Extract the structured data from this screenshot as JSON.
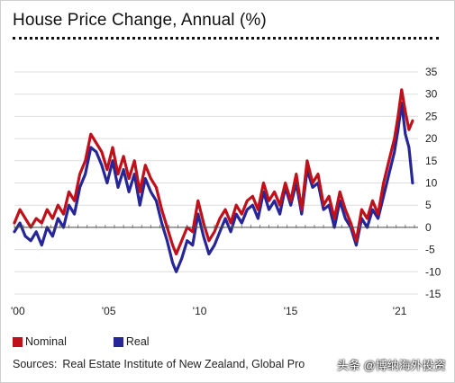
{
  "title": "House Price Change, Annual (%)",
  "legend": {
    "nominal_label": "Nominal",
    "real_label": "Real"
  },
  "source": {
    "label": "Sources:",
    "text": "Real Estate Institute of New Zealand, Global Pro"
  },
  "watermark": "头条 @博纳海外投资",
  "chart_data": {
    "type": "line",
    "title": "House Price Change, Annual (%)",
    "xlabel": "",
    "ylabel": "",
    "xlim": [
      2000,
      2022.2
    ],
    "ylim": [
      -15,
      35
    ],
    "y_axis_side": "right",
    "y_ticks": [
      35,
      30,
      25,
      20,
      15,
      10,
      5,
      0,
      -5,
      -10,
      -15
    ],
    "x_ticks": [
      {
        "value": 2000,
        "label": "'00"
      },
      {
        "value": 2005,
        "label": "'05"
      },
      {
        "value": 2010,
        "label": "'10"
      },
      {
        "value": 2015,
        "label": "'15"
      },
      {
        "value": 2021,
        "label": "'21"
      }
    ],
    "grid": "horizontal",
    "legend_position": "bottom-left",
    "colors": {
      "nominal": "#c0101a",
      "real": "#262699"
    },
    "series": [
      {
        "name": "Nominal",
        "color": "#c0101a",
        "x": [
          2000,
          2000.3,
          2000.6,
          2000.9,
          2001.2,
          2001.5,
          2001.8,
          2002.1,
          2002.4,
          2002.7,
          2003,
          2003.3,
          2003.6,
          2003.9,
          2004.2,
          2004.5,
          2004.8,
          2005.1,
          2005.4,
          2005.7,
          2006,
          2006.3,
          2006.6,
          2006.9,
          2007.2,
          2007.5,
          2007.8,
          2008.1,
          2008.4,
          2008.7,
          2008.9,
          2009.2,
          2009.5,
          2009.8,
          2010.1,
          2010.4,
          2010.7,
          2011,
          2011.3,
          2011.6,
          2011.9,
          2012.2,
          2012.5,
          2012.8,
          2013.1,
          2013.4,
          2013.7,
          2014,
          2014.3,
          2014.6,
          2014.9,
          2015.2,
          2015.5,
          2015.8,
          2016.1,
          2016.4,
          2016.7,
          2017,
          2017.3,
          2017.6,
          2017.9,
          2018.2,
          2018.5,
          2018.8,
          2019.1,
          2019.4,
          2019.7,
          2020,
          2020.3,
          2020.6,
          2020.9,
          2021.1,
          2021.3,
          2021.5,
          2021.7,
          2021.9
        ],
        "values": [
          1,
          4,
          2,
          0,
          2,
          1,
          4,
          2,
          5,
          3,
          8,
          6,
          12,
          15,
          21,
          19,
          17,
          13,
          18,
          12,
          16,
          11,
          15,
          8,
          14,
          11,
          9,
          4,
          0,
          -4,
          -6,
          -3,
          0,
          -1,
          6,
          1,
          -3,
          -1,
          2,
          4,
          1,
          5,
          3,
          6,
          7,
          4,
          10,
          6,
          8,
          5,
          10,
          6,
          12,
          4,
          15,
          10,
          12,
          5,
          7,
          2,
          8,
          4,
          1,
          -3,
          4,
          2,
          6,
          3,
          10,
          15,
          20,
          25,
          31,
          26,
          22,
          24
        ]
      },
      {
        "name": "Real",
        "color": "#262699",
        "x": [
          2000,
          2000.3,
          2000.6,
          2000.9,
          2001.2,
          2001.5,
          2001.8,
          2002.1,
          2002.4,
          2002.7,
          2003,
          2003.3,
          2003.6,
          2003.9,
          2004.2,
          2004.5,
          2004.8,
          2005.1,
          2005.4,
          2005.7,
          2006,
          2006.3,
          2006.6,
          2006.9,
          2007.2,
          2007.5,
          2007.8,
          2008.1,
          2008.4,
          2008.7,
          2008.9,
          2009.2,
          2009.5,
          2009.8,
          2010.1,
          2010.4,
          2010.7,
          2011,
          2011.3,
          2011.6,
          2011.9,
          2012.2,
          2012.5,
          2012.8,
          2013.1,
          2013.4,
          2013.7,
          2014,
          2014.3,
          2014.6,
          2014.9,
          2015.2,
          2015.5,
          2015.8,
          2016.1,
          2016.4,
          2016.7,
          2017,
          2017.3,
          2017.6,
          2017.9,
          2018.2,
          2018.5,
          2018.8,
          2019.1,
          2019.4,
          2019.7,
          2020,
          2020.3,
          2020.6,
          2020.9,
          2021.1,
          2021.3,
          2021.5,
          2021.7,
          2021.9
        ],
        "values": [
          -1,
          1,
          -2,
          -3,
          -1,
          -4,
          0,
          -2,
          2,
          0,
          5,
          3,
          9,
          12,
          18,
          17,
          14,
          10,
          15,
          9,
          13,
          8,
          12,
          5,
          11,
          8,
          6,
          1,
          -3,
          -8,
          -10,
          -7,
          -3,
          -4,
          3,
          -2,
          -6,
          -4,
          -1,
          2,
          -1,
          3,
          1,
          4,
          5,
          2,
          8,
          4,
          6,
          3,
          9,
          5,
          10,
          3,
          13,
          9,
          10,
          4,
          5,
          0,
          6,
          2,
          0,
          -4,
          2,
          0,
          4,
          2,
          7,
          12,
          17,
          22,
          28,
          21,
          18,
          10
        ]
      }
    ]
  }
}
